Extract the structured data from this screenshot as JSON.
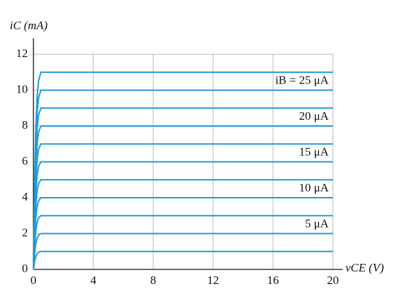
{
  "chart_data": {
    "type": "line",
    "ylabel": "iC (mA)",
    "xlabel": "vCE (V)",
    "x": [
      0,
      0.08,
      0.15,
      0.25,
      0.35,
      0.5,
      20
    ],
    "color": "#1f9ad8",
    "series": [
      {
        "values": [
          0,
          0.45,
          0.7,
          0.88,
          0.96,
          1,
          1
        ]
      },
      {
        "name": "5 μA",
        "values": [
          0,
          0.9,
          1.4,
          1.76,
          1.92,
          2,
          2
        ]
      },
      {
        "values": [
          0,
          1.35,
          2.1,
          2.64,
          2.88,
          3,
          3
        ]
      },
      {
        "name": "10 μA",
        "values": [
          0,
          1.8,
          2.8,
          3.52,
          3.84,
          4,
          4
        ]
      },
      {
        "values": [
          0,
          2.25,
          3.5,
          4.4,
          4.8,
          5,
          5
        ]
      },
      {
        "name": "15 μA",
        "values": [
          0,
          2.7,
          4.2,
          5.28,
          5.76,
          6,
          6
        ]
      },
      {
        "values": [
          0,
          3.15,
          4.9,
          6.16,
          6.72,
          7,
          7
        ]
      },
      {
        "name": "20 μA",
        "values": [
          0,
          3.6,
          5.6,
          7.04,
          7.68,
          8,
          8
        ]
      },
      {
        "values": [
          0,
          4.05,
          6.3,
          7.92,
          8.64,
          9,
          9
        ]
      },
      {
        "name": "iB = 25 μA",
        "values": [
          0,
          4.5,
          7,
          8.8,
          9.6,
          10,
          10
        ]
      },
      {
        "values": [
          0,
          4.95,
          7.7,
          9.68,
          10.56,
          11,
          11
        ]
      }
    ],
    "xlim": [
      0,
      20
    ],
    "ylim": [
      0,
      12
    ],
    "xticks": [
      0,
      4,
      8,
      12,
      16,
      20
    ],
    "yticks": [
      0,
      2,
      4,
      6,
      8,
      10,
      12
    ],
    "grid": true
  }
}
